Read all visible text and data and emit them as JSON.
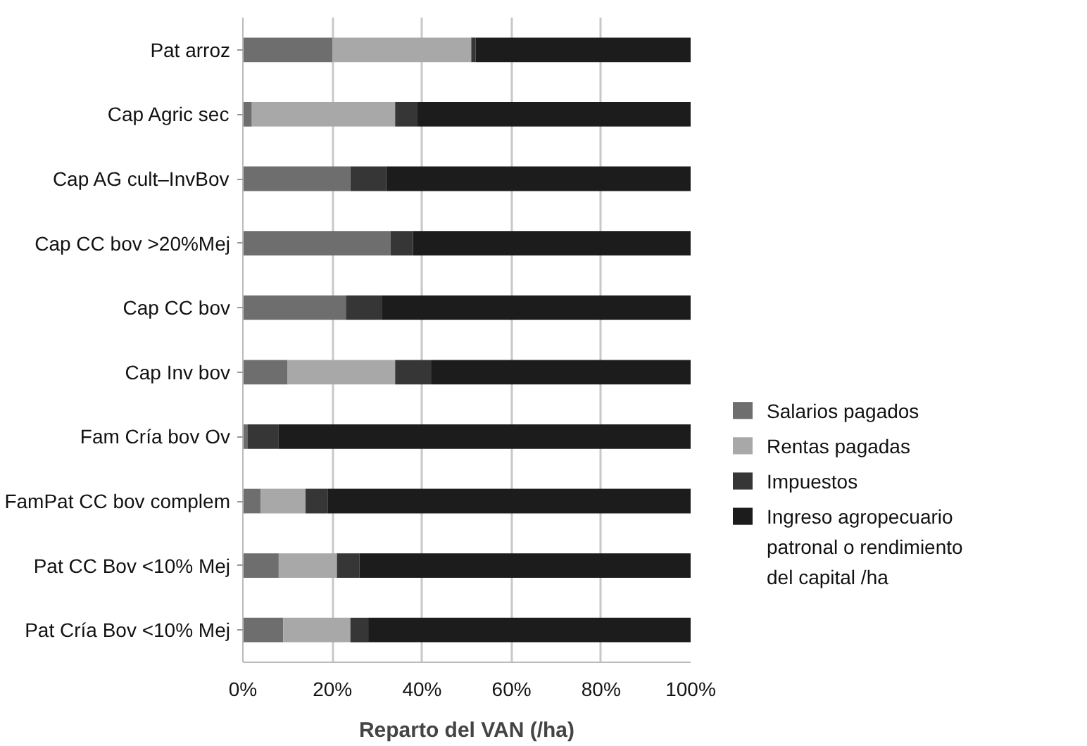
{
  "chart_data": {
    "type": "bar",
    "orientation": "horizontal",
    "stacked": true,
    "xlabel": "Reparto del VAN (/ha)",
    "categories": [
      "Pat arroz",
      "Cap Agric sec",
      "Cap AG cult–InvBov",
      "Cap CC bov >20%Mej",
      "Cap CC bov",
      "Cap Inv bov",
      "Fam Cría bov Ov",
      "FamPat CC bov complem",
      "Pat CC Bov <10% Mej",
      "Pat Cría Bov <10% Mej"
    ],
    "series": [
      {
        "name": "Salarios pagados",
        "color": "#6e6e6e",
        "values": [
          20,
          2,
          24,
          33,
          23,
          10,
          1,
          4,
          8,
          9
        ]
      },
      {
        "name": "Rentas pagadas",
        "color": "#a8a8a8",
        "values": [
          31,
          32,
          0,
          0,
          0,
          24,
          0,
          10,
          13,
          15
        ]
      },
      {
        "name": "Impuestos",
        "color": "#363636",
        "values": [
          1,
          5,
          8,
          5,
          8,
          8,
          7,
          5,
          5,
          4
        ]
      },
      {
        "name": "Ingreso agropecuario patronal o rendimiento del capital /ha",
        "color": "#1c1c1c",
        "values": [
          48,
          61,
          68,
          62,
          69,
          58,
          92,
          81,
          74,
          72
        ]
      }
    ],
    "xlim": [
      0,
      100
    ],
    "xticks": [
      {
        "value": 0,
        "label": "0%"
      },
      {
        "value": 20,
        "label": "20%"
      },
      {
        "value": 40,
        "label": "40%"
      },
      {
        "value": 60,
        "label": "60%"
      },
      {
        "value": 80,
        "label": "80%"
      },
      {
        "value": 100,
        "label": "100%"
      }
    ],
    "grid": "x",
    "legend": "right"
  }
}
